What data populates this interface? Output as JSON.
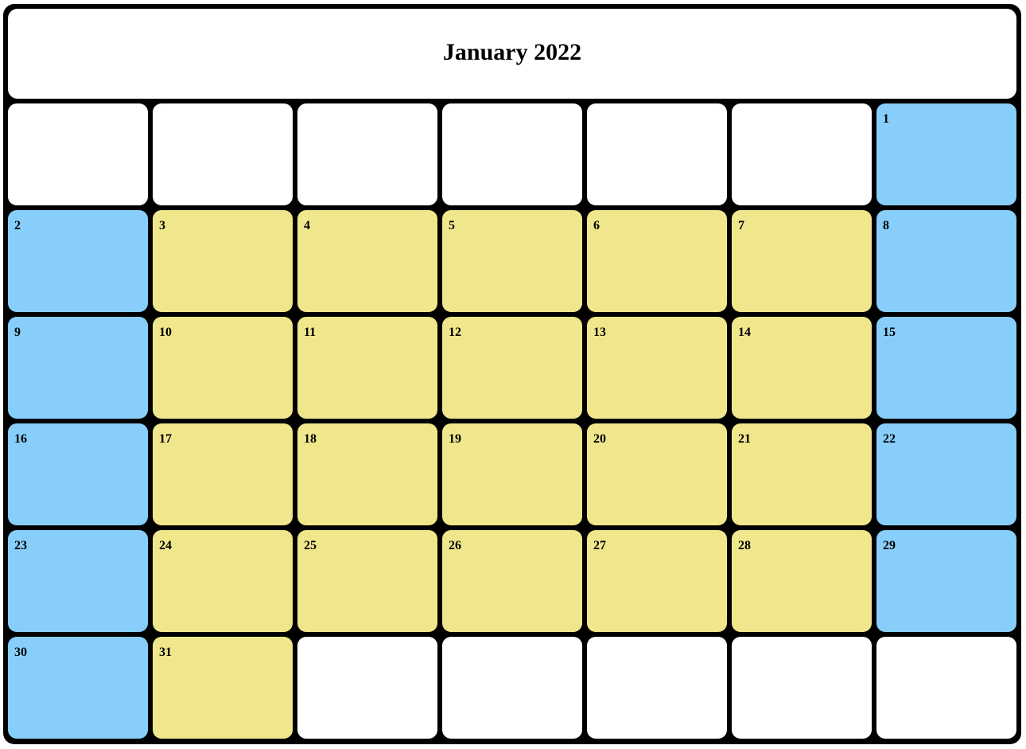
{
  "calendar": {
    "title": "January 2022",
    "colors": {
      "frame": "#000000",
      "empty": "#ffffff",
      "weekend": "#87cefa",
      "weekday": "#f0e68c"
    },
    "cells": [
      {
        "day": "",
        "type": "empty"
      },
      {
        "day": "",
        "type": "empty"
      },
      {
        "day": "",
        "type": "empty"
      },
      {
        "day": "",
        "type": "empty"
      },
      {
        "day": "",
        "type": "empty"
      },
      {
        "day": "",
        "type": "empty"
      },
      {
        "day": "1",
        "type": "weekend"
      },
      {
        "day": "2",
        "type": "weekend"
      },
      {
        "day": "3",
        "type": "weekday"
      },
      {
        "day": "4",
        "type": "weekday"
      },
      {
        "day": "5",
        "type": "weekday"
      },
      {
        "day": "6",
        "type": "weekday"
      },
      {
        "day": "7",
        "type": "weekday"
      },
      {
        "day": "8",
        "type": "weekend"
      },
      {
        "day": "9",
        "type": "weekend"
      },
      {
        "day": "10",
        "type": "weekday"
      },
      {
        "day": "11",
        "type": "weekday"
      },
      {
        "day": "12",
        "type": "weekday"
      },
      {
        "day": "13",
        "type": "weekday"
      },
      {
        "day": "14",
        "type": "weekday"
      },
      {
        "day": "15",
        "type": "weekend"
      },
      {
        "day": "16",
        "type": "weekend"
      },
      {
        "day": "17",
        "type": "weekday"
      },
      {
        "day": "18",
        "type": "weekday"
      },
      {
        "day": "19",
        "type": "weekday"
      },
      {
        "day": "20",
        "type": "weekday"
      },
      {
        "day": "21",
        "type": "weekday"
      },
      {
        "day": "22",
        "type": "weekend"
      },
      {
        "day": "23",
        "type": "weekend"
      },
      {
        "day": "24",
        "type": "weekday"
      },
      {
        "day": "25",
        "type": "weekday"
      },
      {
        "day": "26",
        "type": "weekday"
      },
      {
        "day": "27",
        "type": "weekday"
      },
      {
        "day": "28",
        "type": "weekday"
      },
      {
        "day": "29",
        "type": "weekend"
      },
      {
        "day": "30",
        "type": "weekend"
      },
      {
        "day": "31",
        "type": "weekday"
      },
      {
        "day": "",
        "type": "empty"
      },
      {
        "day": "",
        "type": "empty"
      },
      {
        "day": "",
        "type": "empty"
      },
      {
        "day": "",
        "type": "empty"
      },
      {
        "day": "",
        "type": "empty"
      }
    ]
  }
}
